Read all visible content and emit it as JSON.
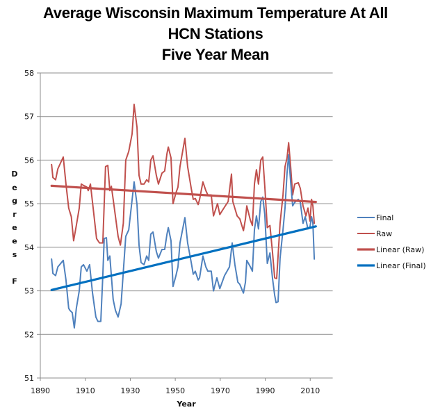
{
  "chart_data": {
    "type": "line",
    "title_lines": [
      "Average Wisconsin Maximum Temperature At All",
      "HCN Stations",
      "Five Year Mean"
    ],
    "xlabel": "Year",
    "ylabel_chars": [
      "D",
      "e",
      "g",
      "r",
      "e",
      "e",
      "s",
      "",
      "F"
    ],
    "xlim": [
      1890,
      2020
    ],
    "ylim": [
      51,
      58
    ],
    "xticks": [
      1890,
      1910,
      1930,
      1950,
      1970,
      1990,
      2010
    ],
    "yticks": [
      51,
      52,
      53,
      54,
      55,
      56,
      57,
      58
    ],
    "grid": "horizontal",
    "legend_position": "right",
    "series": [
      {
        "name": "Final",
        "color": "#4f81bd",
        "style": "thin",
        "points": [
          [
            1895,
            53.73
          ],
          [
            1895.6,
            53.4
          ],
          [
            1896.8,
            53.35
          ],
          [
            1897.8,
            53.55
          ],
          [
            1900.2,
            53.7
          ],
          [
            1901.4,
            53.25
          ],
          [
            1902.6,
            52.6
          ],
          [
            1903.2,
            52.55
          ],
          [
            1904.2,
            52.5
          ],
          [
            1905.1,
            52.15
          ],
          [
            1906,
            52.6
          ],
          [
            1907.3,
            53.0
          ],
          [
            1908.2,
            53.55
          ],
          [
            1909.2,
            53.6
          ],
          [
            1910.7,
            53.45
          ],
          [
            1911.9,
            53.6
          ],
          [
            1913.2,
            52.95
          ],
          [
            1914.7,
            52.4
          ],
          [
            1915.6,
            52.3
          ],
          [
            1916.9,
            52.3
          ],
          [
            1917.8,
            53.35
          ],
          [
            1918.4,
            54.2
          ],
          [
            1919.4,
            54.22
          ],
          [
            1920,
            53.7
          ],
          [
            1920.9,
            53.8
          ],
          [
            1922.4,
            52.8
          ],
          [
            1923.4,
            52.55
          ],
          [
            1924.6,
            52.4
          ],
          [
            1925.9,
            52.7
          ],
          [
            1928,
            54.25
          ],
          [
            1929.3,
            54.4
          ],
          [
            1931.7,
            55.5
          ],
          [
            1933,
            54.98
          ],
          [
            1933.9,
            54.05
          ],
          [
            1934.8,
            53.65
          ],
          [
            1936.1,
            53.6
          ],
          [
            1937.3,
            53.8
          ],
          [
            1938.2,
            53.7
          ],
          [
            1939.1,
            54.3
          ],
          [
            1940.1,
            54.35
          ],
          [
            1941.6,
            53.9
          ],
          [
            1942.5,
            53.75
          ],
          [
            1944.1,
            53.95
          ],
          [
            1945.3,
            53.95
          ],
          [
            1946.3,
            54.3
          ],
          [
            1946.9,
            54.45
          ],
          [
            1948.1,
            54.15
          ],
          [
            1949,
            53.1
          ],
          [
            1950.3,
            53.35
          ],
          [
            1951.2,
            53.55
          ],
          [
            1952.1,
            54.1
          ],
          [
            1954.3,
            54.68
          ],
          [
            1955.5,
            54.1
          ],
          [
            1957.1,
            53.65
          ],
          [
            1958,
            53.38
          ],
          [
            1958.9,
            53.45
          ],
          [
            1960.2,
            53.25
          ],
          [
            1960.8,
            53.3
          ],
          [
            1962.3,
            53.8
          ],
          [
            1963.6,
            53.55
          ],
          [
            1964.5,
            53.45
          ],
          [
            1966,
            53.45
          ],
          [
            1967,
            53.0
          ],
          [
            1968.5,
            53.3
          ],
          [
            1969.8,
            53.05
          ],
          [
            1971.9,
            53.35
          ],
          [
            1974.1,
            53.55
          ],
          [
            1975.3,
            54.1
          ],
          [
            1976.5,
            53.6
          ],
          [
            1977.8,
            53.2
          ],
          [
            1978.7,
            53.15
          ],
          [
            1980.3,
            52.95
          ],
          [
            1981.2,
            53.2
          ],
          [
            1981.8,
            53.7
          ],
          [
            1983.4,
            53.55
          ],
          [
            1984.3,
            53.45
          ],
          [
            1985.2,
            54.4
          ],
          [
            1986.1,
            54.72
          ],
          [
            1987,
            54.42
          ],
          [
            1988,
            55.05
          ],
          [
            1988.9,
            55.15
          ],
          [
            1989.8,
            54.75
          ],
          [
            1990.9,
            53.63
          ],
          [
            1992.1,
            53.87
          ],
          [
            1993.2,
            53.3
          ],
          [
            1994.2,
            52.9
          ],
          [
            1994.8,
            52.73
          ],
          [
            1995.7,
            52.75
          ],
          [
            1996.6,
            53.75
          ],
          [
            1997.9,
            54.4
          ],
          [
            1998.8,
            54.9
          ],
          [
            1999.7,
            55.7
          ],
          [
            2000.4,
            56.12
          ],
          [
            2001.3,
            55.5
          ],
          [
            2002.2,
            54.95
          ],
          [
            2003.1,
            55.03
          ],
          [
            2004.7,
            55.1
          ],
          [
            2005.6,
            55.03
          ],
          [
            2006.8,
            54.55
          ],
          [
            2007.8,
            54.7
          ],
          [
            2009,
            54.42
          ],
          [
            2009.9,
            54.47
          ],
          [
            2010.6,
            54.7
          ],
          [
            2011.2,
            54.55
          ],
          [
            2011.8,
            53.73
          ]
        ]
      },
      {
        "name": "Raw",
        "color": "#c0504d",
        "style": "thin",
        "points": [
          [
            1895,
            55.9
          ],
          [
            1895.6,
            55.6
          ],
          [
            1896.8,
            55.55
          ],
          [
            1897.8,
            55.8
          ],
          [
            1900.2,
            56.07
          ],
          [
            1901.4,
            55.45
          ],
          [
            1902.6,
            54.9
          ],
          [
            1903.8,
            54.7
          ],
          [
            1904.8,
            54.15
          ],
          [
            1906,
            54.5
          ],
          [
            1907.3,
            54.9
          ],
          [
            1908.2,
            55.45
          ],
          [
            1909.2,
            55.42
          ],
          [
            1910.7,
            55.38
          ],
          [
            1911.3,
            55.3
          ],
          [
            1912.3,
            55.45
          ],
          [
            1913.5,
            54.9
          ],
          [
            1915,
            54.2
          ],
          [
            1916.3,
            54.1
          ],
          [
            1917.8,
            54.1
          ],
          [
            1919,
            55.85
          ],
          [
            1920,
            55.88
          ],
          [
            1920.9,
            55.3
          ],
          [
            1921.6,
            55.4
          ],
          [
            1922.4,
            55.1
          ],
          [
            1924.6,
            54.25
          ],
          [
            1925.6,
            54.05
          ],
          [
            1926.9,
            54.55
          ],
          [
            1928,
            56.0
          ],
          [
            1929.3,
            56.2
          ],
          [
            1930.8,
            56.6
          ],
          [
            1931.7,
            57.28
          ],
          [
            1933,
            56.75
          ],
          [
            1933.9,
            55.65
          ],
          [
            1934.8,
            55.45
          ],
          [
            1936.1,
            55.45
          ],
          [
            1937.3,
            55.55
          ],
          [
            1938.2,
            55.5
          ],
          [
            1939.1,
            56.0
          ],
          [
            1940.1,
            56.1
          ],
          [
            1941.6,
            55.65
          ],
          [
            1942.5,
            55.45
          ],
          [
            1944.1,
            55.7
          ],
          [
            1945.3,
            55.75
          ],
          [
            1946.3,
            56.15
          ],
          [
            1946.9,
            56.3
          ],
          [
            1948.1,
            56.05
          ],
          [
            1949,
            55.0
          ],
          [
            1950.3,
            55.25
          ],
          [
            1951.2,
            55.38
          ],
          [
            1952.1,
            55.85
          ],
          [
            1954.3,
            56.5
          ],
          [
            1955.5,
            55.85
          ],
          [
            1957.1,
            55.35
          ],
          [
            1958,
            55.1
          ],
          [
            1958.9,
            55.12
          ],
          [
            1960.2,
            54.98
          ],
          [
            1960.8,
            55.1
          ],
          [
            1962.3,
            55.5
          ],
          [
            1963.6,
            55.3
          ],
          [
            1964.5,
            55.2
          ],
          [
            1966,
            55.2
          ],
          [
            1967,
            54.72
          ],
          [
            1968.8,
            55.0
          ],
          [
            1969.8,
            54.75
          ],
          [
            1971,
            54.85
          ],
          [
            1973.5,
            55.05
          ],
          [
            1975,
            55.68
          ],
          [
            1975.6,
            55.05
          ],
          [
            1977.5,
            54.72
          ],
          [
            1978.7,
            54.65
          ],
          [
            1980.3,
            54.38
          ],
          [
            1981.2,
            54.65
          ],
          [
            1981.8,
            54.95
          ],
          [
            1983.4,
            54.62
          ],
          [
            1984.3,
            54.5
          ],
          [
            1985.2,
            55.45
          ],
          [
            1986.1,
            55.78
          ],
          [
            1987,
            55.45
          ],
          [
            1988,
            56.0
          ],
          [
            1988.9,
            56.07
          ],
          [
            1989.8,
            55.4
          ],
          [
            1990.9,
            54.45
          ],
          [
            1992.1,
            54.5
          ],
          [
            1993.2,
            53.9
          ],
          [
            1994.2,
            53.3
          ],
          [
            1995.1,
            53.28
          ],
          [
            1996.6,
            54.55
          ],
          [
            1997.9,
            55.2
          ],
          [
            1998.8,
            55.85
          ],
          [
            1999.7,
            56.05
          ],
          [
            2000.4,
            56.4
          ],
          [
            2001.3,
            55.85
          ],
          [
            2002.2,
            55.2
          ],
          [
            2003.1,
            55.45
          ],
          [
            2004.7,
            55.48
          ],
          [
            2005.6,
            55.35
          ],
          [
            2006.8,
            54.95
          ],
          [
            2008.1,
            54.72
          ],
          [
            2009,
            54.9
          ],
          [
            2009.9,
            54.6
          ],
          [
            2010.6,
            55.1
          ],
          [
            2011.2,
            54.95
          ],
          [
            2011.8,
            54.55
          ]
        ]
      },
      {
        "name": "Linear (Raw)",
        "color": "#c0504d",
        "style": "thick",
        "points": [
          [
            1895,
            55.41
          ],
          [
            2012.5,
            55.04
          ]
        ]
      },
      {
        "name": "Linear (Final)",
        "color": "#0070c0",
        "style": "thick",
        "points": [
          [
            1895,
            53.02
          ],
          [
            2012.5,
            54.48
          ]
        ]
      }
    ]
  }
}
